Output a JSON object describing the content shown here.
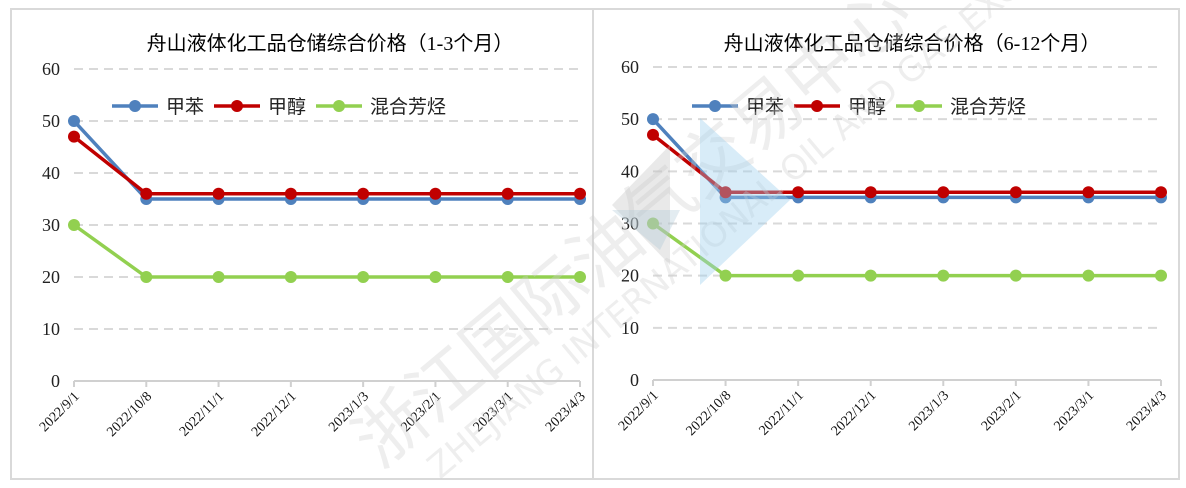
{
  "chart_data": [
    {
      "type": "line",
      "title": "舟山液体化工品仓储综合价格（1-3个月）",
      "categories": [
        "2022/9/1",
        "2022/10/8",
        "2022/11/1",
        "2022/12/1",
        "2023/1/3",
        "2023/2/1",
        "2023/3/1",
        "2023/4/3"
      ],
      "series": [
        {
          "name": "甲苯",
          "color": "#4f81bd",
          "values": [
            50,
            35,
            35,
            35,
            35,
            35,
            35,
            35
          ]
        },
        {
          "name": "甲醇",
          "color": "#c00000",
          "values": [
            47,
            36,
            36,
            36,
            36,
            36,
            36,
            36
          ]
        },
        {
          "name": "混合芳烃",
          "color": "#92d050",
          "values": [
            30,
            20,
            20,
            20,
            20,
            20,
            20,
            20
          ]
        }
      ],
      "xlabel": "",
      "ylabel": "",
      "ylim": [
        0,
        60
      ],
      "yticks": [
        "0",
        "10",
        "20",
        "30",
        "40",
        "50",
        "60"
      ],
      "grid": true,
      "legend_position": "top"
    },
    {
      "type": "line",
      "title": "舟山液体化工品仓储综合价格（6-12个月）",
      "categories": [
        "2022/9/1",
        "2022/10/8",
        "2022/11/1",
        "2022/12/1",
        "2023/1/3",
        "2023/2/1",
        "2023/3/1",
        "2023/4/3"
      ],
      "series": [
        {
          "name": "甲苯",
          "color": "#4f81bd",
          "values": [
            50,
            35,
            35,
            35,
            35,
            35,
            35,
            35
          ]
        },
        {
          "name": "甲醇",
          "color": "#c00000",
          "values": [
            47,
            36,
            36,
            36,
            36,
            36,
            36,
            36
          ]
        },
        {
          "name": "混合芳烃",
          "color": "#92d050",
          "values": [
            30,
            20,
            20,
            20,
            20,
            20,
            20,
            20
          ]
        }
      ],
      "xlabel": "",
      "ylabel": "",
      "ylim": [
        0,
        60
      ],
      "yticks": [
        "0",
        "10",
        "20",
        "30",
        "40",
        "50",
        "60"
      ],
      "grid": true,
      "legend_position": "top"
    }
  ],
  "watermark": {
    "text_cn": "浙江国际油气交易中心",
    "text_en": "ZHEJIANG INTERNATIONAL OIL AND GAS EXCHANGE"
  }
}
